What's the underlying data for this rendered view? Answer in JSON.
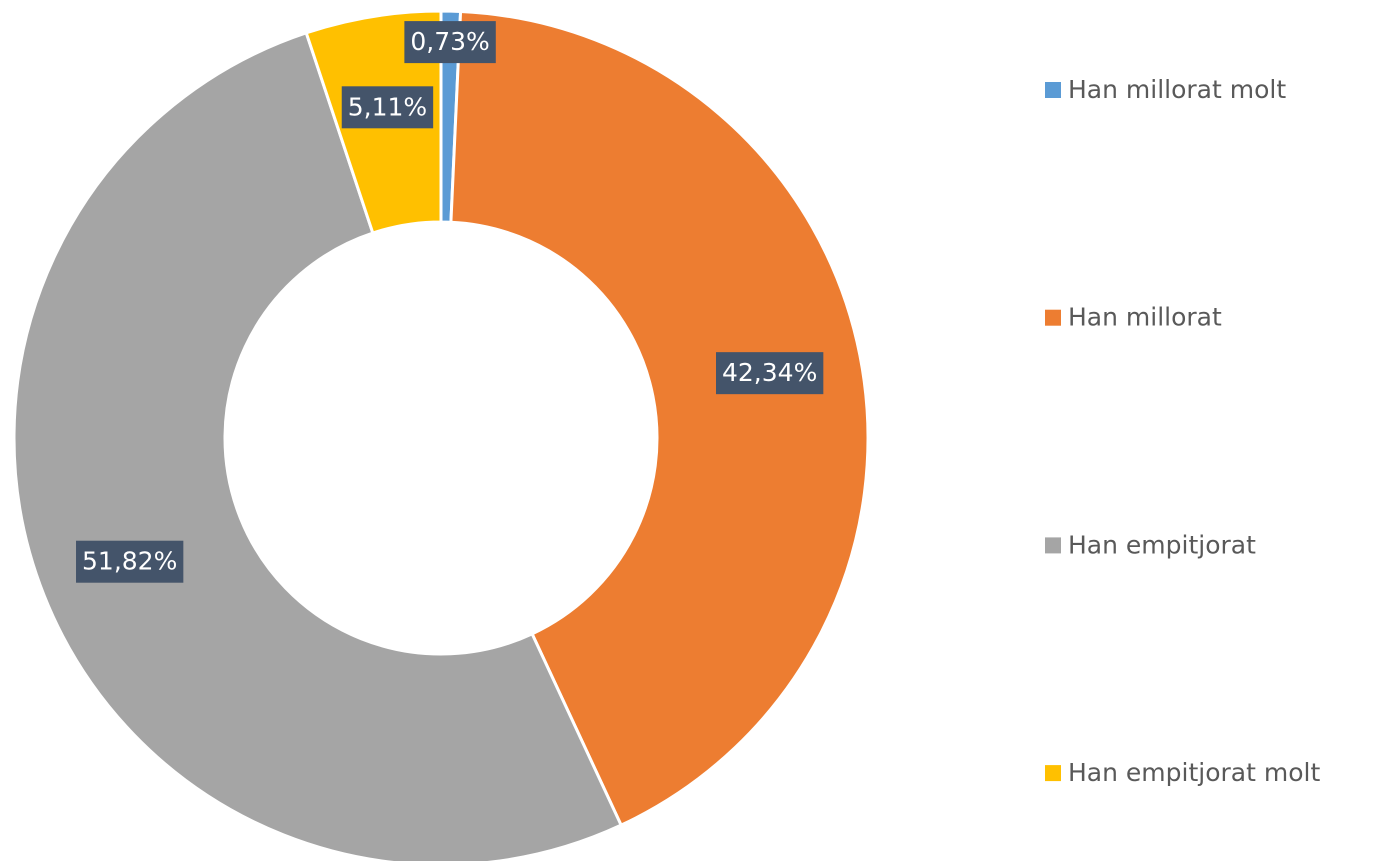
{
  "chart_data": {
    "type": "donut",
    "categories": [
      "Han millorat molt",
      "Han millorat",
      "Han empitjorat",
      "Han empitjorat molt"
    ],
    "values": [
      0.73,
      42.34,
      51.82,
      5.11
    ],
    "value_labels": [
      "0,73%",
      "42,34%",
      "51,82%",
      "5,11%"
    ],
    "colors": [
      "#5b9bd5",
      "#ed7d31",
      "#a5a5a5",
      "#ffc000"
    ],
    "legend": "right"
  }
}
